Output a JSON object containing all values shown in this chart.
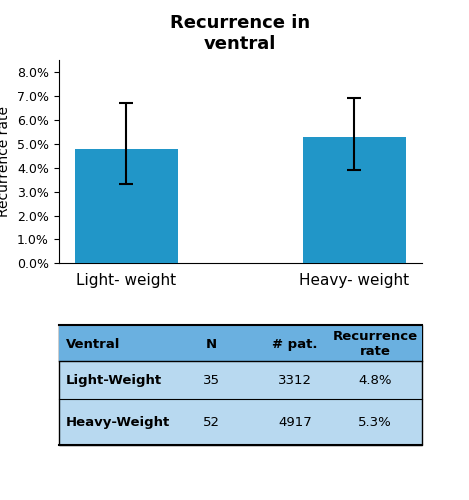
{
  "title": "Recurrence in\nventral",
  "categories": [
    "Light- weight",
    "Heavy- weight"
  ],
  "values": [
    0.048,
    0.053
  ],
  "yerr_upper": [
    0.019,
    0.016
  ],
  "yerr_lower": [
    0.015,
    0.014
  ],
  "bar_color": "#2196c8",
  "ylim": [
    0.0,
    0.085
  ],
  "yticks": [
    0.0,
    0.01,
    0.02,
    0.03,
    0.04,
    0.05,
    0.06,
    0.07,
    0.08
  ],
  "ytick_labels": [
    "0.0%",
    "1.0%",
    "2.0%",
    "3.0%",
    "4.0%",
    "5.0%",
    "6.0%",
    "7.0%",
    "8.0%"
  ],
  "ylabel": "Recurrence rate",
  "table_header_bg": "#6ab0e0",
  "table_row_bg": "#b8d9f0",
  "table_header": [
    "Ventral",
    "N",
    "# pat.",
    "Recurrence\nrate"
  ],
  "table_rows": [
    [
      "Light-Weight",
      "35",
      "3312",
      "4.8%"
    ],
    [
      "Heavy-Weight",
      "52",
      "4917",
      "5.3%"
    ]
  ]
}
